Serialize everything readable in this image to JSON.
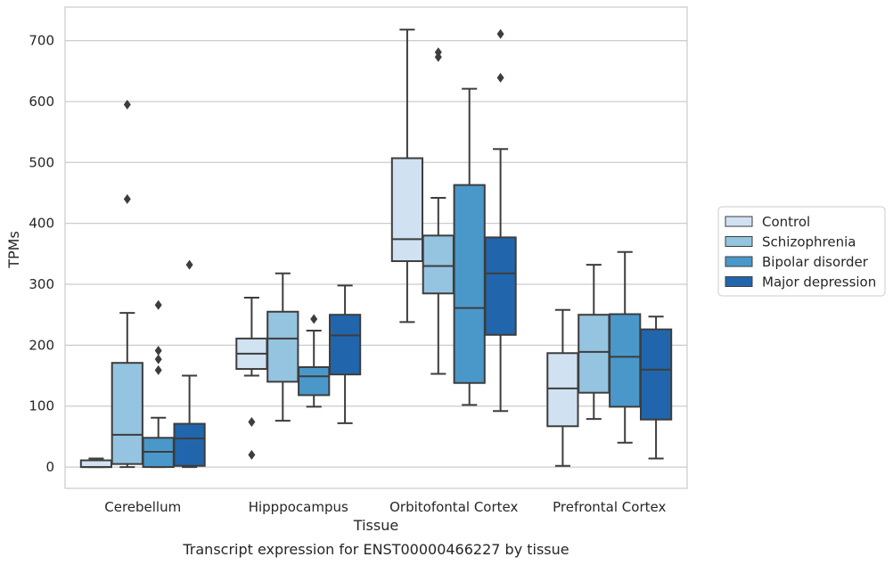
{
  "chart_data": {
    "type": "box",
    "caption": "Transcript expression for ENST00000466227 by tissue",
    "xlabel": "Tissue",
    "ylabel": "TPMs",
    "ylim": [
      -35,
      755
    ],
    "yticks": [
      0,
      100,
      200,
      300,
      400,
      500,
      600,
      700
    ],
    "grid": true,
    "legend_position": "right",
    "categories": [
      "Cerebellum",
      "Hipppocampus",
      "Orbitofontal Cortex",
      "Prefrontal Cortex"
    ],
    "series": [
      {
        "name": "Control",
        "color": "#d0e1f2",
        "boxes": [
          {
            "whislo": 0,
            "q1": 0,
            "med": 0,
            "q3": 11,
            "whishi": 14,
            "fliers": []
          },
          {
            "whislo": 150,
            "q1": 161,
            "med": 186,
            "q3": 211,
            "whishi": 278,
            "fliers": [
              74,
              20
            ]
          },
          {
            "whislo": 238,
            "q1": 338,
            "med": 374,
            "q3": 507,
            "whishi": 718,
            "fliers": []
          },
          {
            "whislo": 2,
            "q1": 67,
            "med": 129,
            "q3": 187,
            "whishi": 258,
            "fliers": []
          }
        ]
      },
      {
        "name": "Schizophrenia",
        "color": "#94c4df",
        "boxes": [
          {
            "whislo": 0,
            "q1": 5,
            "med": 53,
            "q3": 171,
            "whishi": 253,
            "fliers": [
              595,
              440
            ]
          },
          {
            "whislo": 76,
            "q1": 140,
            "med": 211,
            "q3": 255,
            "whishi": 318,
            "fliers": []
          },
          {
            "whislo": 153,
            "q1": 285,
            "med": 330,
            "q3": 380,
            "whishi": 442,
            "fliers": [
              681,
              673
            ]
          },
          {
            "whislo": 79,
            "q1": 122,
            "med": 189,
            "q3": 250,
            "whishi": 332,
            "fliers": []
          }
        ]
      },
      {
        "name": "Bipolar disorder",
        "color": "#4a98c9",
        "boxes": [
          {
            "whislo": 0,
            "q1": 0,
            "med": 25,
            "q3": 48,
            "whishi": 81,
            "fliers": [
              266,
              191,
              177,
              159
            ]
          },
          {
            "whislo": 99,
            "q1": 118,
            "med": 149,
            "q3": 164,
            "whishi": 224,
            "fliers": [
              243
            ]
          },
          {
            "whislo": 102,
            "q1": 138,
            "med": 261,
            "q3": 463,
            "whishi": 621,
            "fliers": []
          },
          {
            "whislo": 40,
            "q1": 99,
            "med": 181,
            "q3": 251,
            "whishi": 353,
            "fliers": []
          }
        ]
      },
      {
        "name": "Major depression",
        "color": "#2166ac",
        "boxes": [
          {
            "whislo": 0,
            "q1": 2,
            "med": 47,
            "q3": 71,
            "whishi": 150,
            "fliers": [
              332
            ]
          },
          {
            "whislo": 72,
            "q1": 152,
            "med": 216,
            "q3": 250,
            "whishi": 298,
            "fliers": []
          },
          {
            "whislo": 92,
            "q1": 217,
            "med": 318,
            "q3": 377,
            "whishi": 522,
            "fliers": [
              711,
              639
            ]
          },
          {
            "whislo": 14,
            "q1": 78,
            "med": 160,
            "q3": 226,
            "whishi": 247,
            "fliers": []
          }
        ]
      }
    ]
  }
}
